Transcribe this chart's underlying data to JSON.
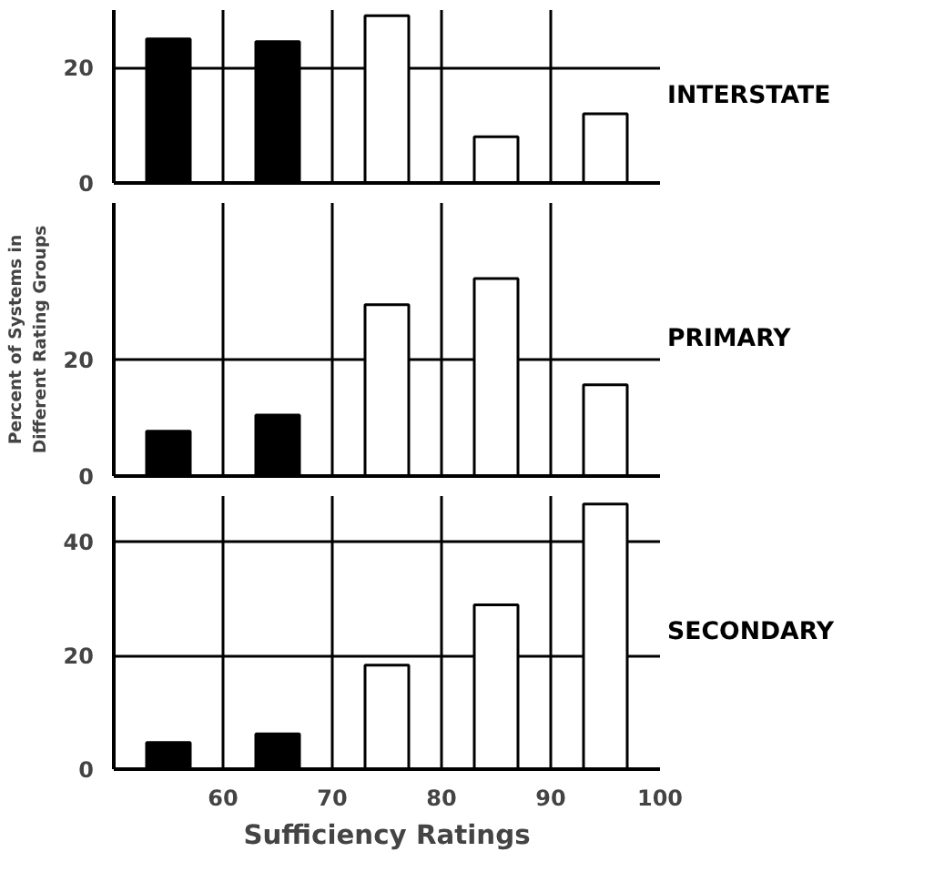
{
  "chart_data": [
    {
      "type": "bar",
      "title": "INTERSTATE",
      "x": [
        55,
        65,
        75,
        85,
        95
      ],
      "values": [
        25,
        24.5,
        29,
        8,
        12
      ],
      "colors": [
        "#000000",
        "#000000",
        "#ffffff",
        "#ffffff",
        "#ffffff"
      ],
      "xlim": [
        50,
        100
      ],
      "xticks": [
        60,
        70,
        80,
        90,
        100
      ],
      "ylim": [
        0,
        30
      ],
      "yticks": [
        0,
        20
      ],
      "grid": true,
      "tick_labels": "y"
    },
    {
      "type": "bar",
      "title": "PRIMARY",
      "ylabel": "Percent of Systems in Different Rating Groups",
      "x": [
        55,
        65,
        75,
        85,
        95
      ],
      "values": [
        7.7,
        10.5,
        29.5,
        34,
        15.7
      ],
      "colors": [
        "#000000",
        "#000000",
        "#ffffff",
        "#ffffff",
        "#ffffff"
      ],
      "xlim": [
        50,
        100
      ],
      "xticks": [
        60,
        70,
        80,
        90,
        100
      ],
      "ylim": [
        0,
        47
      ],
      "yticks": [
        0,
        20
      ],
      "grid": true,
      "tick_labels": "y"
    },
    {
      "type": "bar",
      "title": "SECONDARY",
      "xlabel": "Sufficiency Ratings",
      "x": [
        55,
        65,
        75,
        85,
        95
      ],
      "values": [
        4.7,
        6.2,
        18.3,
        28.9,
        46.6
      ],
      "colors": [
        "#000000",
        "#000000",
        "#ffffff",
        "#ffffff",
        "#ffffff"
      ],
      "xlim": [
        50,
        100
      ],
      "xticks": [
        60,
        70,
        80,
        90,
        100
      ],
      "ylim": [
        0,
        48
      ],
      "yticks": [
        0,
        20,
        40
      ],
      "grid": true
    }
  ]
}
